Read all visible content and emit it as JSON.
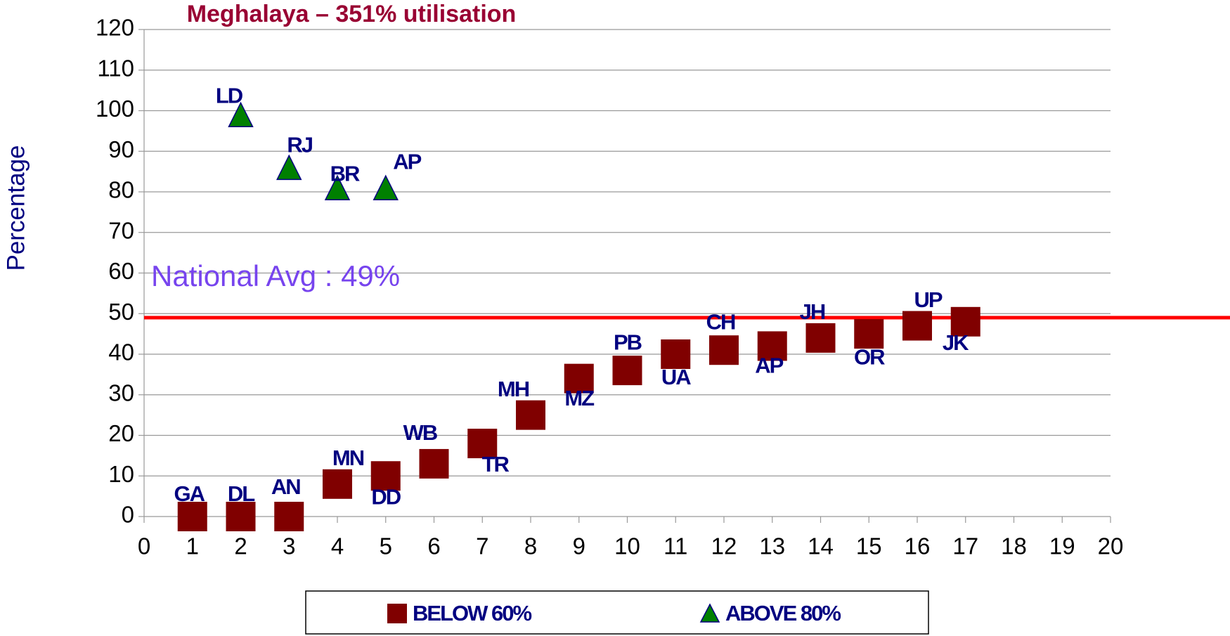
{
  "chart_data": {
    "type": "scatter",
    "title": "Meghalaya – 351% utilisation",
    "ylabel": "Percentage",
    "xlim": [
      0,
      20
    ],
    "xticks": [
      0,
      1,
      2,
      3,
      4,
      5,
      6,
      7,
      8,
      9,
      10,
      11,
      12,
      13,
      14,
      15,
      16,
      17,
      18,
      19,
      20
    ],
    "ylim": [
      0,
      120
    ],
    "yticks": [
      0,
      10,
      20,
      30,
      40,
      50,
      60,
      70,
      80,
      90,
      100,
      110,
      120
    ],
    "grid": true,
    "legend": "bottom",
    "reference_line": {
      "value": 49,
      "label": "National Avg : 49%",
      "color": "#ff0000"
    },
    "series": [
      {
        "name": "BELOW 60%",
        "color": "#800000",
        "marker": "square",
        "x": [
          1,
          2,
          3,
          4,
          5,
          6,
          7,
          8,
          9,
          10,
          11,
          12,
          13,
          14,
          15,
          16,
          17
        ],
        "values": [
          0,
          0,
          0,
          8,
          10,
          13,
          18,
          25,
          34,
          36,
          40,
          41,
          42,
          44,
          45,
          47,
          48
        ],
        "labels": [
          "GA",
          "DL",
          "AN",
          "MN",
          "DD",
          "WB",
          "TR",
          "MH",
          "MZ",
          "PB",
          "UA",
          "CH",
          "AP",
          "JH",
          "OR",
          "UP",
          "JK"
        ]
      },
      {
        "name": "ABOVE 80%",
        "color": "#008000",
        "marker": "triangle",
        "x": [
          2,
          3,
          4,
          5
        ],
        "values": [
          99,
          86,
          81,
          81
        ],
        "labels": [
          "LD",
          "RJ",
          "BR",
          "AP"
        ]
      }
    ]
  }
}
